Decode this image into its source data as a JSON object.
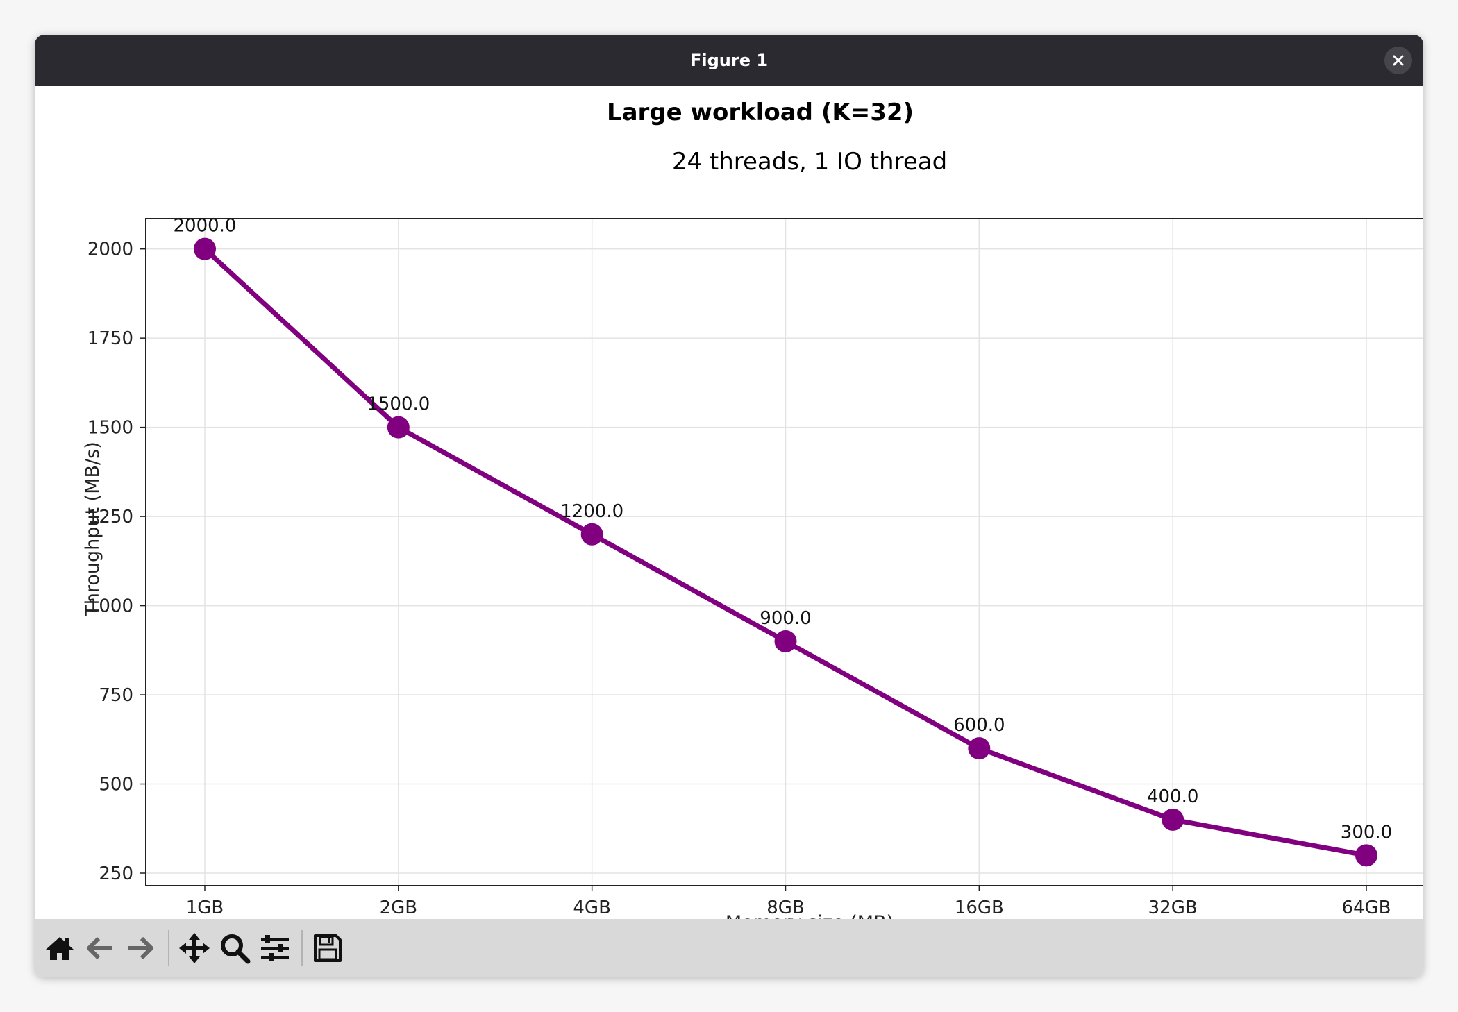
{
  "window": {
    "title": "Figure 1"
  },
  "toolbar": {
    "home_icon": "home-icon",
    "back_icon": "arrow-left-icon",
    "forward_icon": "arrow-right-icon",
    "pan_icon": "move-icon",
    "zoom_icon": "magnifier-icon",
    "configure_icon": "sliders-icon",
    "save_icon": "floppy-disk-icon"
  },
  "chart_data": {
    "type": "line",
    "title": "Large workload (K=32)",
    "subtitle": "24 threads, 1 IO thread",
    "xlabel": "Memory size (MB)",
    "ylabel": "Throughput (MB/s)",
    "categories": [
      "1GB",
      "2GB",
      "4GB",
      "8GB",
      "16GB",
      "32GB",
      "64GB"
    ],
    "series": [
      {
        "values": [
          2000,
          1500,
          1200,
          900,
          600,
          400,
          300
        ],
        "color": "#800080"
      }
    ],
    "data_labels": [
      "2000.0",
      "1500.0",
      "1200.0",
      "900.0",
      "600.0",
      "400.0",
      "300.0"
    ],
    "yticks": [
      250,
      500,
      750,
      1000,
      1250,
      1500,
      1750,
      2000
    ],
    "ylim": [
      215,
      2085
    ],
    "grid": true,
    "legend": "none"
  }
}
